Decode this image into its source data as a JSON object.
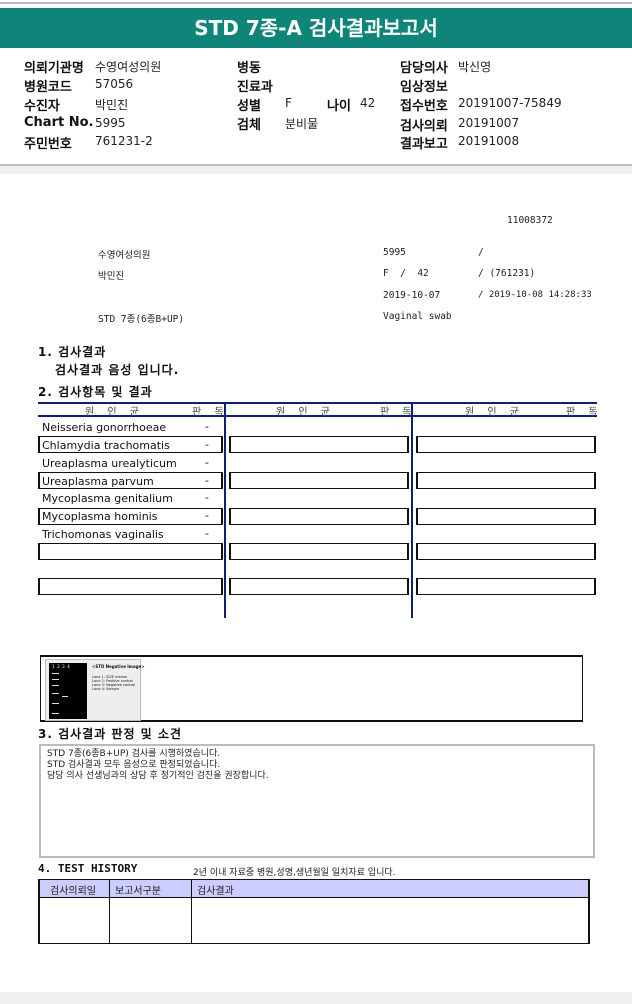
{
  "title": "STD 7종-A 검사결과보고서",
  "info": {
    "left": [
      {
        "label": "의뢰기관명",
        "value": "수영여성의원"
      },
      {
        "label": "병원코드",
        "value": "57056"
      },
      {
        "label": "수진자",
        "value": "박민진"
      },
      {
        "label": "Chart No.",
        "value": "5995"
      },
      {
        "label": "주민번호",
        "value": "761231-2"
      }
    ],
    "middle": [
      {
        "label": "병동",
        "value": ""
      },
      {
        "label": "진료과",
        "value": ""
      },
      {
        "label": "성별",
        "value": "F"
      },
      {
        "label": "검체",
        "value": "분비물"
      }
    ],
    "age_label": "나이",
    "age_value": "42",
    "right": [
      {
        "label": "담당의사",
        "value": "박신영"
      },
      {
        "label": "임상정보",
        "value": ""
      },
      {
        "label": "접수번호",
        "value": "20191007-75849"
      },
      {
        "label": "검사의뢰",
        "value": "20191007"
      },
      {
        "label": "결과보고",
        "value": "20191008"
      }
    ]
  },
  "report": {
    "id": "11008372",
    "hospital": "수영여성의원",
    "chart": "5995",
    "slash1": "/",
    "patient": "박민진",
    "sex_age": "F  /  42",
    "birth": "/ (761231)",
    "request_date": "2019-10-07",
    "report_datetime": "/ 2019-10-08 14:28:33",
    "test": "STD 7종(6종B+UP)",
    "specimen": "Vaginal swab",
    "sec1_title": "1. 검사결과",
    "sec1_text": "검사결과 음성 입니다.",
    "sec2_title": "2. 검사항목 및 결과",
    "col_org": "원 인 균",
    "col_res": "판 독",
    "items": [
      {
        "name": "Neisseria gonorrhoeae",
        "result": "-"
      },
      {
        "name": "Chlamydia trachomatis",
        "result": "-"
      },
      {
        "name": "Ureaplasma urealyticum",
        "result": "-"
      },
      {
        "name": "Ureaplasma parvum",
        "result": "-"
      },
      {
        "name": "Mycoplasma genitalium",
        "result": "-"
      },
      {
        "name": "Mycoplasma hominis",
        "result": "-"
      },
      {
        "name": "Trichomonas vaginalis",
        "result": "-"
      }
    ],
    "gel": {
      "lanes": "1  2  3  4",
      "title": "<STD Negative Image>",
      "legend": [
        "Lane 1: SIZE marker",
        "Lane 2: Positive control",
        "Lane 3: Negative control",
        "Lane 4: Sample"
      ]
    },
    "sec3_title": "3. 검사결과 판정 및 소견",
    "sec3_lines": [
      "STD 7종(6종B+UP) 검사를 시행하였습니다.",
      "STD 검사결과 모두 음성으로 판정되었습니다.",
      "담당 의사 선생님과의 상담 후 정기적인 검진을 권장합니다."
    ],
    "sec4_title": "4. TEST HISTORY",
    "sec4_note": "2년 이내 자료중 병원,성명,생년월일 일치자료 입니다.",
    "history_headers": [
      "검사의뢰일",
      "보고서구분",
      "검사결과"
    ],
    "header_color": "#ccccff",
    "accent": "#0f857a"
  }
}
